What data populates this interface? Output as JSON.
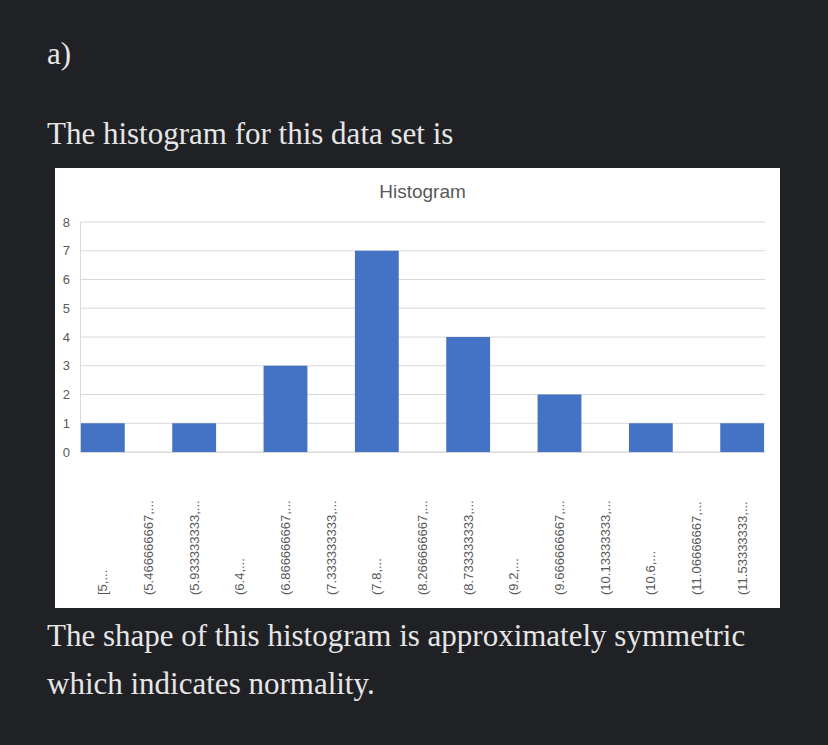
{
  "heading": "a)",
  "intro": "The histogram for this data set is",
  "conclusion": "The shape of this histogram is approximately symmetric which indicates normality.",
  "chart_data": {
    "type": "bar",
    "title": "Histogram",
    "categories": [
      "[5,...",
      "(5.466666667,...",
      "(5.933333333,...",
      "(6.4,...",
      "(6.866666667,...",
      "(7.333333333,...",
      "(7.8,...",
      "(8.266666667,...",
      "(8.733333333,...",
      "(9.2,...",
      "(9.666666667,...",
      "(10.13333333,...",
      "(10.6,...",
      "(11.06666667,...",
      "(11.53333333,..."
    ],
    "values": [
      1,
      0,
      1,
      0,
      3,
      0,
      7,
      0,
      4,
      0,
      2,
      0,
      1,
      0,
      1
    ],
    "color": "#4472c4",
    "ylim": [
      0,
      8
    ],
    "yticks": [
      0,
      1,
      2,
      3,
      4,
      5,
      6,
      7,
      8
    ],
    "grid": true
  }
}
